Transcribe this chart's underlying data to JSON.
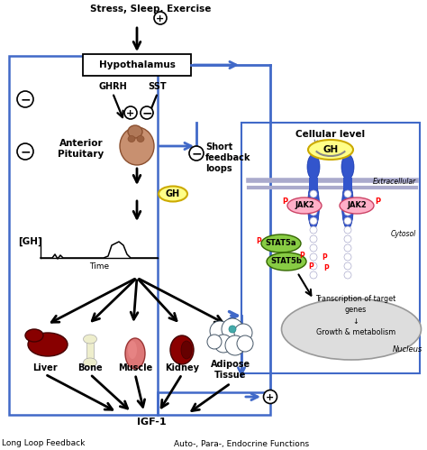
{
  "bg_color": "#ffffff",
  "blue_color": "#4169c8",
  "black": "#000000",
  "p_color": "#ff0000",
  "jak2_fill": "#ffb0c8",
  "jak2_edge": "#cc4466",
  "stat5a_fill": "#88cc44",
  "stat5b_fill": "#88cc44",
  "stat_edge": "#336600",
  "gh_fill": "#ffff88",
  "gh_edge": "#ccaa00",
  "receptor_fill": "#3355cc",
  "receptor_edge": "#1133aa",
  "pituitary_fill": "#c89070",
  "pituitary_edge": "#8B5030",
  "liver_fill": "#880000",
  "liver_edge": "#440000",
  "bone_fill": "#eeeecc",
  "bone_edge": "#aaaaaa",
  "muscle_fill": "#dd7777",
  "muscle_edge": "#993333",
  "kidney_fill": "#8b0000",
  "kidney_edge": "#440000",
  "nucleus_fill": "#dddddd",
  "nucleus_edge": "#999999",
  "membrane_color": "#aaaacc",
  "text_stress": "Stress, Sleep, Exercise",
  "text_hypo": "Hypothalamus",
  "text_ghrh": "GHRH",
  "text_sst": "SST",
  "text_anterior": "Anterior\nPituitary",
  "text_gh": "GH",
  "text_gh_bracket": "[GH]",
  "text_time": "Time",
  "text_short_fb": "Short\nfeedback\nloops",
  "text_cellular": "Cellular level",
  "text_extracellular": "Extracellular",
  "text_cytosol": "Cytosol",
  "text_nucleus": "Nucleus",
  "text_transcription": "Transcription of target\ngenes\n↓\nGrowth & metabolism",
  "text_jak2": "JAK2",
  "text_stat5a": "STAT5a",
  "text_stat5b": "STAT5b",
  "text_liver": "Liver",
  "text_bone": "Bone",
  "text_muscle": "Muscle",
  "text_kidney": "Kidney",
  "text_adipose": "Adipose\nTissue",
  "text_igf1": "IGF-1",
  "text_long_loop": "Long Loop Feedback",
  "text_auto_para": "Auto-, Para-, Endocrine Functions"
}
